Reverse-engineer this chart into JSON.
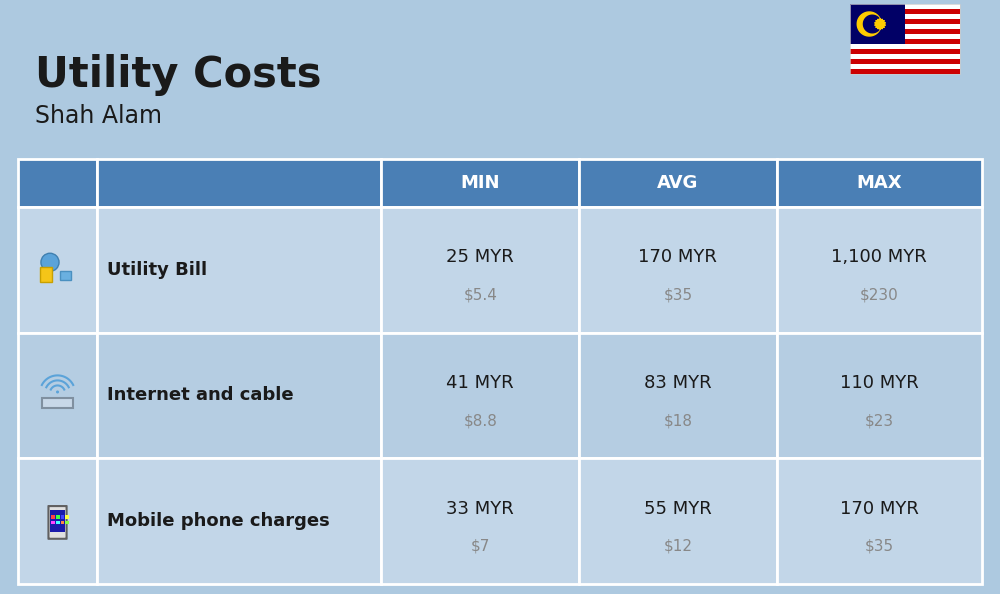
{
  "title": "Utility Costs",
  "subtitle": "Shah Alam",
  "background_color": "#adc9e0",
  "header_bg_color": "#4a7fb5",
  "header_text_color": "#ffffff",
  "row_bg_color_1": "#c2d6e8",
  "row_bg_color_2": "#b5cde2",
  "cell_line_color": "#ffffff",
  "col_headers": [
    "MIN",
    "AVG",
    "MAX"
  ],
  "rows": [
    {
      "label": "Utility Bill",
      "min_myr": "25 MYR",
      "min_usd": "$5.4",
      "avg_myr": "170 MYR",
      "avg_usd": "$35",
      "max_myr": "1,100 MYR",
      "max_usd": "$230"
    },
    {
      "label": "Internet and cable",
      "min_myr": "41 MYR",
      "min_usd": "$8.8",
      "avg_myr": "83 MYR",
      "avg_usd": "$18",
      "max_myr": "110 MYR",
      "max_usd": "$23"
    },
    {
      "label": "Mobile phone charges",
      "min_myr": "33 MYR",
      "min_usd": "$7",
      "avg_myr": "55 MYR",
      "avg_usd": "$12",
      "max_myr": "170 MYR",
      "max_usd": "$35"
    }
  ],
  "title_fontsize": 30,
  "subtitle_fontsize": 17,
  "header_fontsize": 13,
  "label_fontsize": 13,
  "value_fontsize": 13,
  "usd_fontsize": 11
}
